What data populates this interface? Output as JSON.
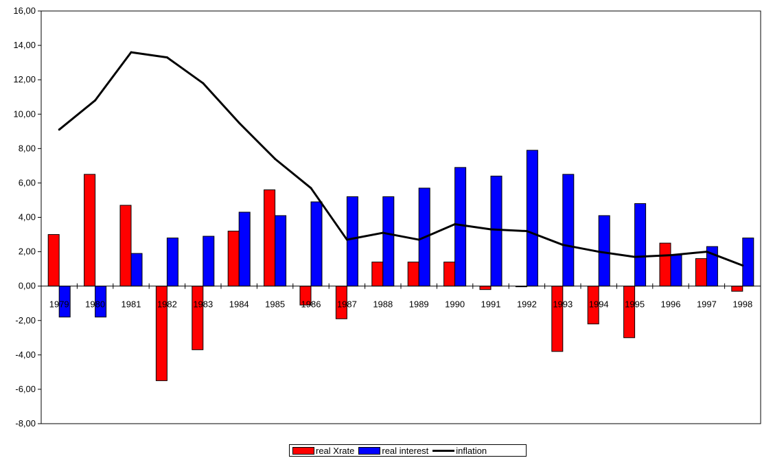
{
  "chart_data": {
    "type": "bar",
    "categories": [
      "1979",
      "1980",
      "1981",
      "1982",
      "1983",
      "1984",
      "1985",
      "1986",
      "1987",
      "1988",
      "1989",
      "1990",
      "1991",
      "1992",
      "1993",
      "1994",
      "1995",
      "1996",
      "1997",
      "1998"
    ],
    "series": [
      {
        "name": "real Xrate",
        "type": "bar",
        "color": "#ff0000",
        "values": [
          3.0,
          6.5,
          4.7,
          -5.5,
          -3.7,
          3.2,
          5.6,
          -1.1,
          -1.9,
          1.4,
          1.4,
          1.4,
          -0.2,
          0.0,
          -3.8,
          -2.2,
          -3.0,
          2.5,
          1.6,
          -0.3
        ]
      },
      {
        "name": "real interest",
        "type": "bar",
        "color": "#0000ff",
        "values": [
          -1.8,
          -1.8,
          1.9,
          2.8,
          2.9,
          4.3,
          4.1,
          4.9,
          5.2,
          5.2,
          5.7,
          6.9,
          6.4,
          7.9,
          6.5,
          4.1,
          4.8,
          1.8,
          2.3,
          2.8
        ]
      },
      {
        "name": "inflation",
        "type": "line",
        "color": "#000000",
        "values": [
          9.1,
          10.8,
          13.6,
          13.3,
          11.8,
          9.5,
          7.4,
          5.7,
          2.7,
          3.1,
          2.7,
          3.6,
          3.3,
          3.2,
          2.4,
          2.0,
          1.7,
          1.8,
          2.0,
          1.2
        ]
      }
    ],
    "ylim": [
      -8,
      16
    ],
    "yticks": [
      "-8,00",
      "-6,00",
      "-4,00",
      "-2,00",
      "0,00",
      "2,00",
      "4,00",
      "6,00",
      "8,00",
      "10,00",
      "12,00",
      "14,00",
      "16,00"
    ],
    "ytick_values": [
      -8,
      -6,
      -4,
      -2,
      0,
      2,
      4,
      6,
      8,
      10,
      12,
      14,
      16
    ],
    "legend_position": "bottom-center",
    "grid": false
  }
}
